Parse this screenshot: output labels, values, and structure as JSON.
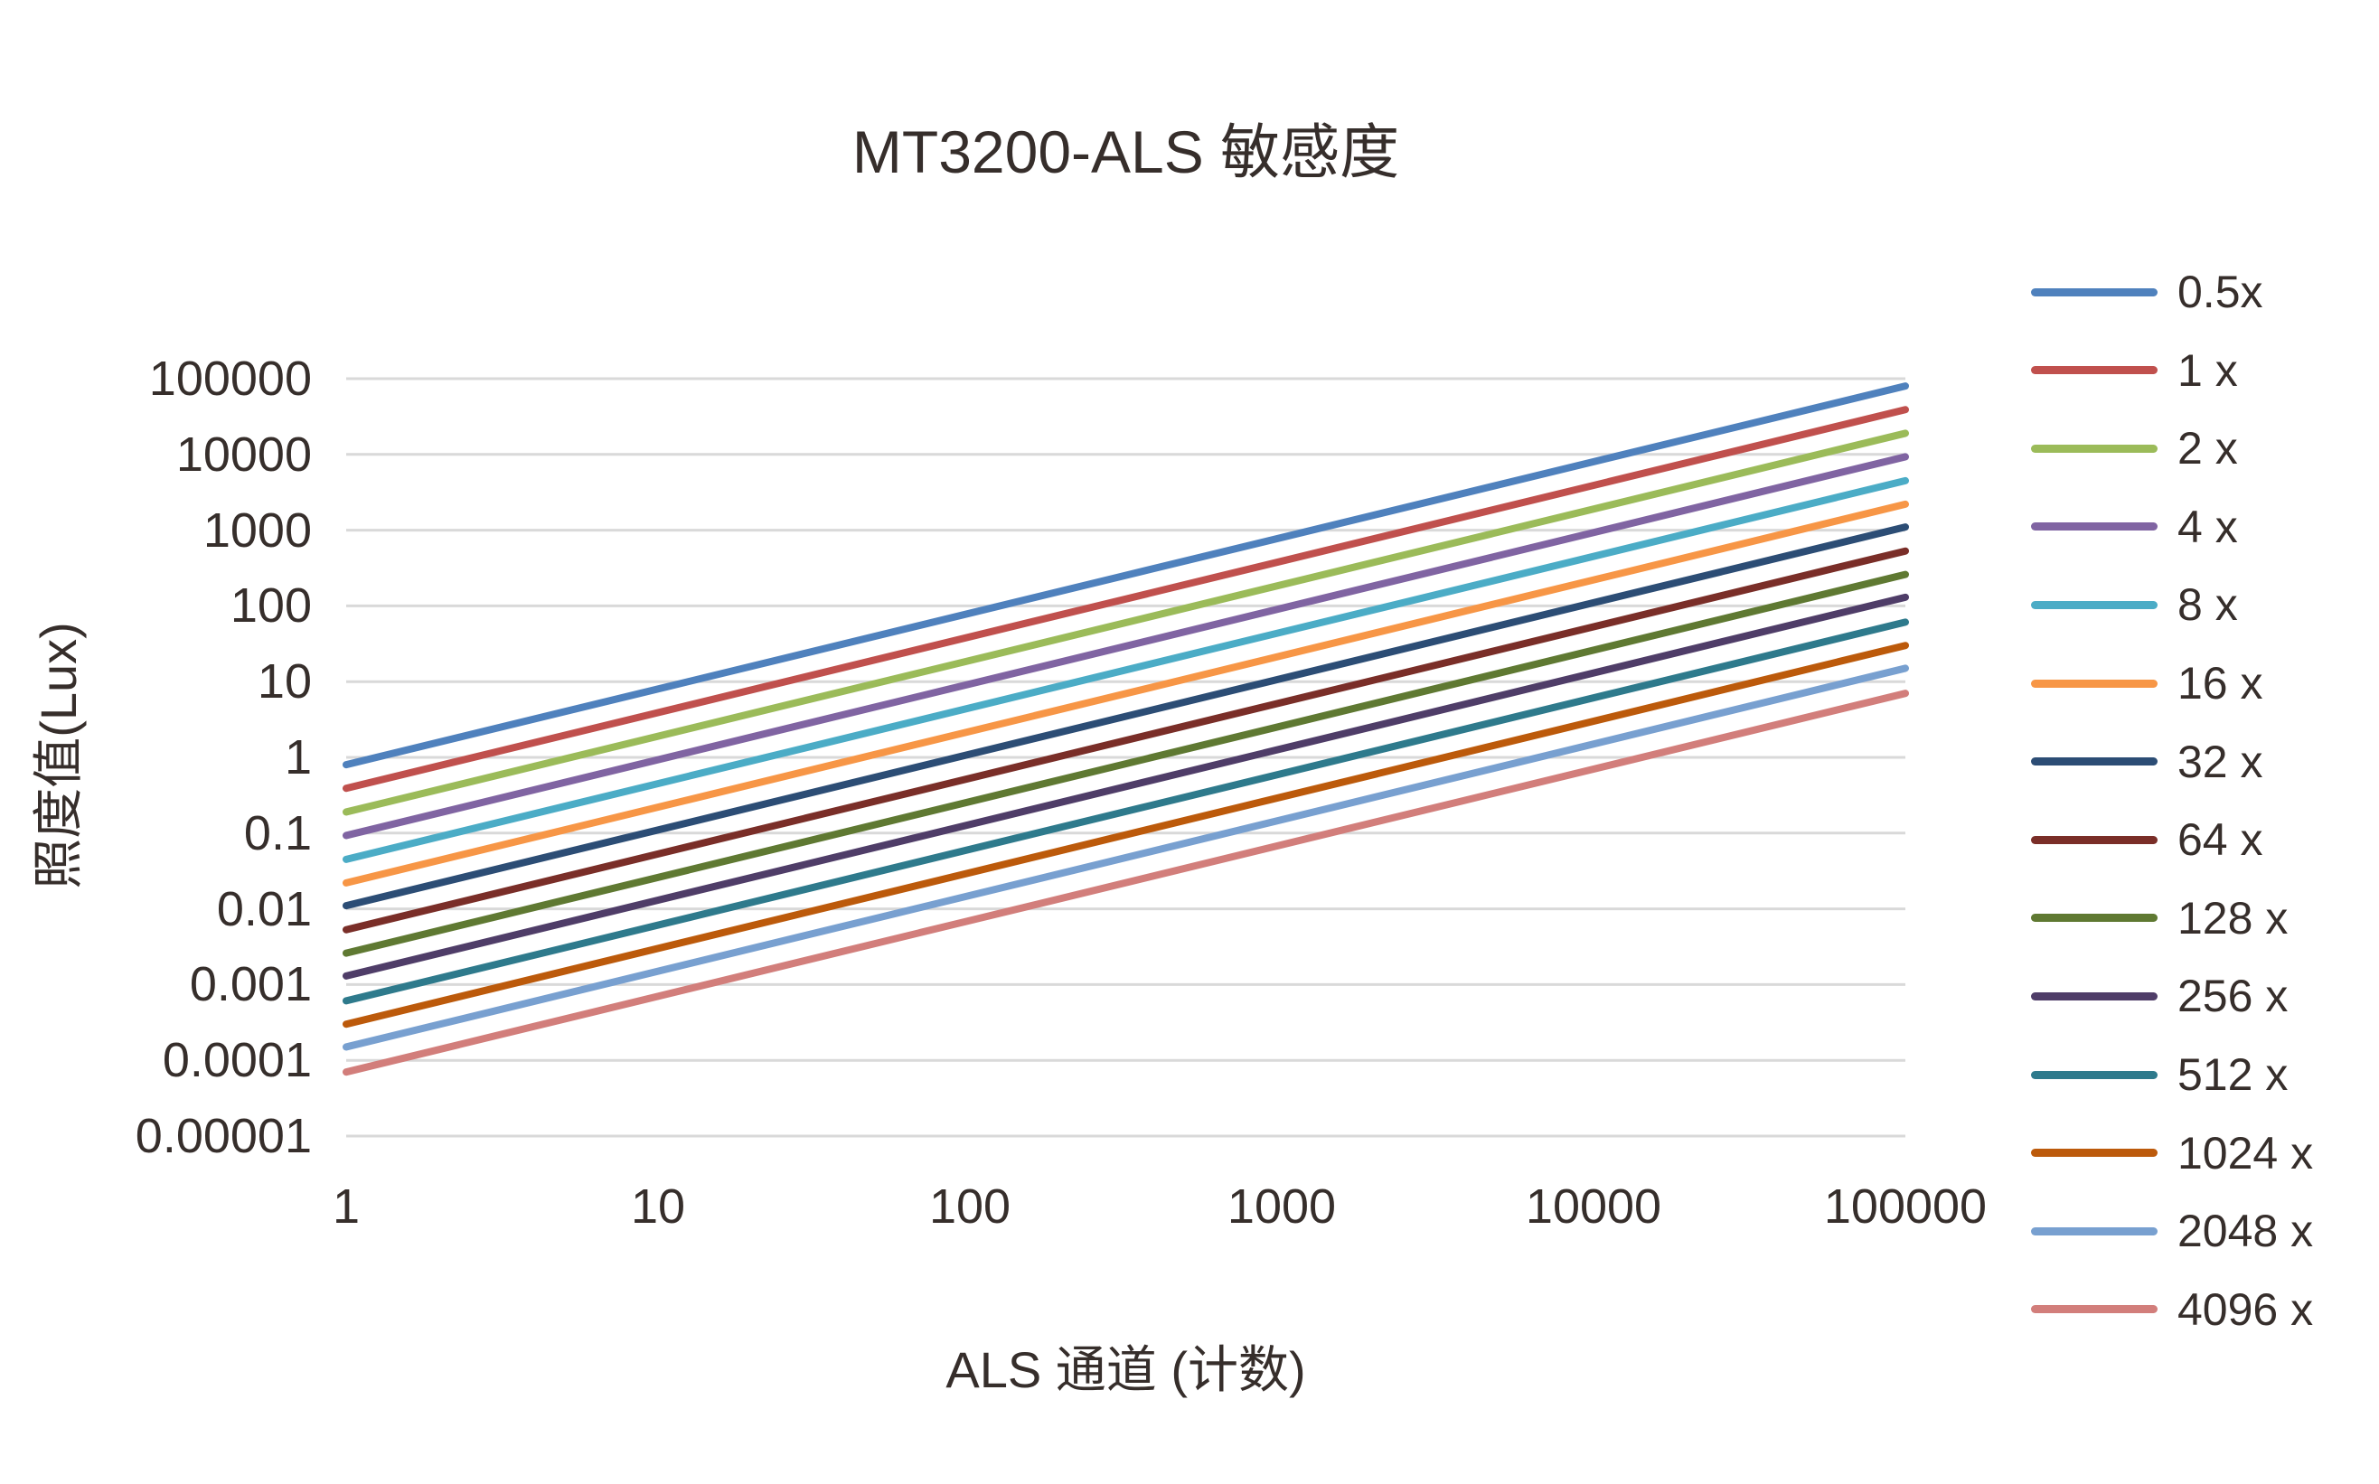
{
  "chart_data": {
    "type": "line",
    "title": "MT3200-ALS 敏感度",
    "xlabel": "ALS 通道 (计数)",
    "ylabel": "照度值(Lux)",
    "x_scale": "log",
    "y_scale": "log",
    "xlim": [
      1,
      100000
    ],
    "ylim": [
      1e-05,
      100000
    ],
    "x_tick_labels": [
      "1",
      "10",
      "100",
      "1000",
      "10000",
      "100000"
    ],
    "y_tick_labels": [
      "100000",
      "10000",
      "1000",
      "100",
      "10",
      "1",
      "0.1",
      "0.01",
      "0.001",
      "0.0001",
      "0.00001"
    ],
    "grid": "horizontal-only",
    "gridline_color": "#d9d9d9",
    "text_color": "#362e2b",
    "legend_position": "right",
    "line_relation": "lux = ALS_counts × sensitivity(gain), straight lines on log-log axes",
    "series": [
      {
        "name": "0.5x",
        "color": "#4F81BD",
        "sensitivity_lux_per_count": 0.8,
        "points": [
          [
            1,
            0.8
          ],
          [
            100000,
            80000
          ]
        ]
      },
      {
        "name": "1 x",
        "color": "#C0504D",
        "sensitivity_lux_per_count": 0.39,
        "points": [
          [
            1,
            0.39
          ],
          [
            100000,
            39000
          ]
        ]
      },
      {
        "name": "2 x",
        "color": "#9BBB59",
        "sensitivity_lux_per_count": 0.19,
        "points": [
          [
            1,
            0.19
          ],
          [
            100000,
            19000
          ]
        ]
      },
      {
        "name": "4 x",
        "color": "#8064A2",
        "sensitivity_lux_per_count": 0.093,
        "points": [
          [
            1,
            0.093
          ],
          [
            100000,
            9300
          ]
        ]
      },
      {
        "name": "8 x",
        "color": "#4BACC6",
        "sensitivity_lux_per_count": 0.045,
        "points": [
          [
            1,
            0.045
          ],
          [
            100000,
            4500
          ]
        ]
      },
      {
        "name": "16 x",
        "color": "#F79646",
        "sensitivity_lux_per_count": 0.022,
        "points": [
          [
            1,
            0.022
          ],
          [
            100000,
            2200
          ]
        ]
      },
      {
        "name": "32 x",
        "color": "#2C4D75",
        "sensitivity_lux_per_count": 0.011,
        "points": [
          [
            1,
            0.011
          ],
          [
            100000,
            1100
          ]
        ]
      },
      {
        "name": "64 x",
        "color": "#7A2E28",
        "sensitivity_lux_per_count": 0.0053,
        "points": [
          [
            1,
            0.0053
          ],
          [
            100000,
            530
          ]
        ]
      },
      {
        "name": "128 x",
        "color": "#5F7932",
        "sensitivity_lux_per_count": 0.0026,
        "points": [
          [
            1,
            0.0026
          ],
          [
            100000,
            260
          ]
        ]
      },
      {
        "name": "256 x",
        "color": "#4F3D68",
        "sensitivity_lux_per_count": 0.0013,
        "points": [
          [
            1,
            0.0013
          ],
          [
            100000,
            130
          ]
        ]
      },
      {
        "name": "512 x",
        "color": "#2E7A8C",
        "sensitivity_lux_per_count": 0.00061,
        "points": [
          [
            1,
            0.00061
          ],
          [
            100000,
            61
          ]
        ]
      },
      {
        "name": "1024 x",
        "color": "#BC5A0B",
        "sensitivity_lux_per_count": 0.0003,
        "points": [
          [
            1,
            0.0003
          ],
          [
            100000,
            30
          ]
        ]
      },
      {
        "name": "2048 x",
        "color": "#78A0D0",
        "sensitivity_lux_per_count": 0.00015,
        "points": [
          [
            1,
            0.00015
          ],
          [
            100000,
            15
          ]
        ]
      },
      {
        "name": "4096 x",
        "color": "#D27E7B",
        "sensitivity_lux_per_count": 7e-05,
        "points": [
          [
            1,
            7e-05
          ],
          [
            100000,
            7
          ]
        ]
      }
    ]
  }
}
